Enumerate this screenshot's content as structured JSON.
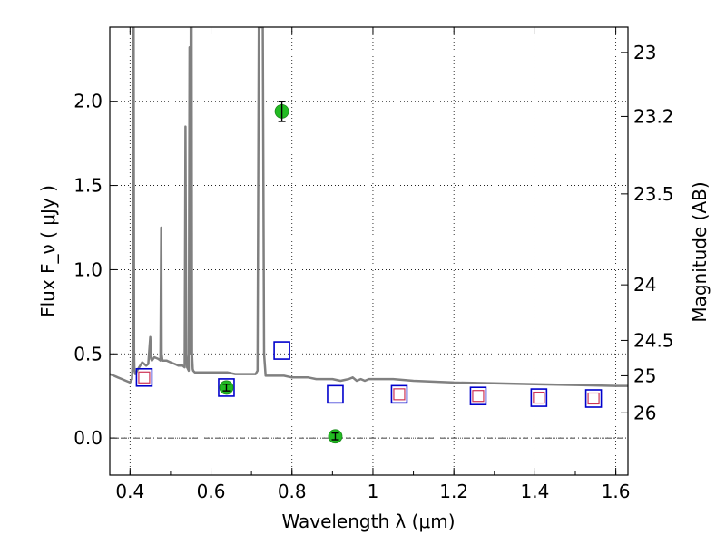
{
  "chart_data": {
    "type": "scatter",
    "xlabel": "Wavelength  λ (μm)",
    "ylabel": "Flux  F_ν  ( μJy )",
    "ylabel_right": "Magnitude (AB)",
    "xlim": [
      0.35,
      1.63
    ],
    "ylim": [
      -0.22,
      2.44
    ],
    "x_ticks": [
      0.4,
      0.6,
      0.8,
      1.0,
      1.2,
      1.4,
      1.6
    ],
    "x_tick_labels": [
      "0.4",
      "0.6",
      "0.8",
      "1",
      "1.2",
      "1.4",
      "1.6"
    ],
    "y_ticks": [
      0.0,
      0.5,
      1.0,
      1.5,
      2.0
    ],
    "y_tick_labels": [
      "0.0",
      "0.5",
      "1.0",
      "1.5",
      "2.0"
    ],
    "right_ticks": [
      {
        "label": "23",
        "flux": 2.29
      },
      {
        "label": "23.2",
        "flux": 1.91
      },
      {
        "label": "23.5",
        "flux": 1.45
      },
      {
        "label": "24",
        "flux": 0.91
      },
      {
        "label": "24.5",
        "flux": 0.58
      },
      {
        "label": "25",
        "flux": 0.37
      },
      {
        "label": "26",
        "flux": 0.15
      }
    ],
    "grid": true,
    "series": [
      {
        "role": "template_spectrum",
        "color": "#808080",
        "x": [
          0.35,
          0.36,
          0.37,
          0.38,
          0.39,
          0.4,
          0.405,
          0.407,
          0.408,
          0.409,
          0.41,
          0.411,
          0.413,
          0.42,
          0.43,
          0.435,
          0.44,
          0.445,
          0.45,
          0.452,
          0.454,
          0.46,
          0.47,
          0.475,
          0.477,
          0.478,
          0.48,
          0.49,
          0.5,
          0.51,
          0.52,
          0.53,
          0.535,
          0.537,
          0.539,
          0.541,
          0.545,
          0.547,
          0.549,
          0.55,
          0.552,
          0.553,
          0.555,
          0.556,
          0.56,
          0.58,
          0.6,
          0.62,
          0.64,
          0.66,
          0.68,
          0.7,
          0.71,
          0.715,
          0.718,
          0.72,
          0.722,
          0.725,
          0.728,
          0.731,
          0.735,
          0.738,
          0.74,
          0.745,
          0.75,
          0.78,
          0.8,
          0.82,
          0.84,
          0.86,
          0.88,
          0.9,
          0.92,
          0.94,
          0.95,
          0.96,
          0.97,
          0.98,
          0.99,
          1.0,
          1.05,
          1.1,
          1.2,
          1.3,
          1.4,
          1.5,
          1.6,
          1.63
        ],
        "y": [
          0.38,
          0.37,
          0.36,
          0.35,
          0.34,
          0.33,
          0.35,
          0.5,
          2.44,
          2.44,
          0.5,
          0.4,
          0.38,
          0.41,
          0.45,
          0.44,
          0.43,
          0.44,
          0.6,
          0.47,
          0.46,
          0.48,
          0.47,
          0.46,
          1.25,
          0.5,
          0.46,
          0.46,
          0.45,
          0.44,
          0.43,
          0.43,
          0.42,
          1.85,
          0.5,
          0.42,
          0.4,
          2.32,
          0.5,
          2.44,
          2.44,
          0.5,
          0.41,
          0.4,
          0.39,
          0.39,
          0.39,
          0.39,
          0.39,
          0.38,
          0.38,
          0.38,
          0.38,
          0.4,
          2.44,
          2.44,
          2.44,
          2.44,
          2.44,
          0.5,
          0.37,
          0.37,
          0.37,
          0.37,
          0.37,
          0.37,
          0.36,
          0.36,
          0.36,
          0.35,
          0.35,
          0.35,
          0.34,
          0.35,
          0.36,
          0.34,
          0.35,
          0.34,
          0.35,
          0.35,
          0.35,
          0.34,
          0.33,
          0.325,
          0.32,
          0.315,
          0.31,
          0.31
        ]
      },
      {
        "role": "model_photometry",
        "marker": "open-square",
        "color": "#0000cc",
        "x": [
          0.435,
          0.638,
          0.775,
          0.907,
          1.065,
          1.26,
          1.41,
          1.545
        ],
        "y": [
          0.36,
          0.3,
          0.52,
          0.26,
          0.26,
          0.25,
          0.24,
          0.235
        ]
      },
      {
        "role": "photometry_upper",
        "marker": "open-square-small",
        "color": "#cc3355",
        "x": [
          0.435,
          1.065,
          1.26,
          1.41,
          1.545
        ],
        "y": [
          0.36,
          0.26,
          0.25,
          0.24,
          0.235
        ]
      },
      {
        "role": "observed_detections",
        "marker": "filled-circle",
        "color": "#22bb22",
        "x": [
          0.638,
          0.775,
          0.907
        ],
        "y": [
          0.3,
          1.94,
          0.01
        ],
        "yerr": [
          0.02,
          0.06,
          0.02
        ]
      }
    ]
  }
}
